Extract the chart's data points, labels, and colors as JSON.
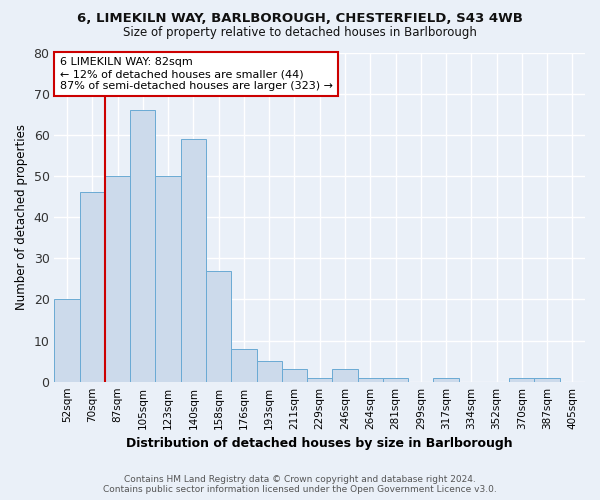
{
  "title1": "6, LIMEKILN WAY, BARLBOROUGH, CHESTERFIELD, S43 4WB",
  "title2": "Size of property relative to detached houses in Barlborough",
  "xlabel": "Distribution of detached houses by size in Barlborough",
  "ylabel": "Number of detached properties",
  "categories": [
    "52sqm",
    "70sqm",
    "87sqm",
    "105sqm",
    "123sqm",
    "140sqm",
    "158sqm",
    "176sqm",
    "193sqm",
    "211sqm",
    "229sqm",
    "246sqm",
    "264sqm",
    "281sqm",
    "299sqm",
    "317sqm",
    "334sqm",
    "352sqm",
    "370sqm",
    "387sqm",
    "405sqm"
  ],
  "values": [
    20,
    46,
    50,
    66,
    50,
    59,
    27,
    8,
    5,
    3,
    1,
    3,
    1,
    1,
    0,
    1,
    0,
    0,
    1,
    1,
    0
  ],
  "bar_color": "#ccdaeb",
  "bar_edge_color": "#6aaad4",
  "red_line_x": 1.5,
  "annotation_title": "6 LIMEKILN WAY: 82sqm",
  "annotation_line1": "← 12% of detached houses are smaller (44)",
  "annotation_line2": "87% of semi-detached houses are larger (323) →",
  "annotation_box_color": "#ffffff",
  "annotation_box_edge": "#cc0000",
  "red_line_color": "#cc0000",
  "footer1": "Contains HM Land Registry data © Crown copyright and database right 2024.",
  "footer2": "Contains public sector information licensed under the Open Government Licence v3.0.",
  "ylim": [
    0,
    80
  ],
  "yticks": [
    0,
    10,
    20,
    30,
    40,
    50,
    60,
    70,
    80
  ],
  "background_color": "#eaf0f8",
  "grid_color": "#ffffff"
}
